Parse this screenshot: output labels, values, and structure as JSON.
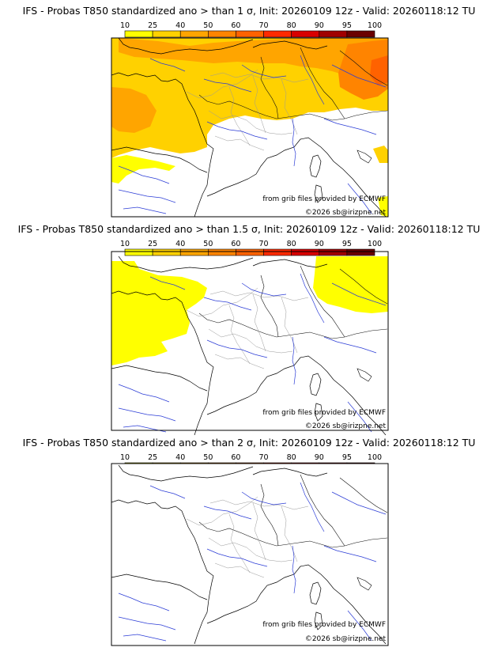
{
  "legend": {
    "ticks": [
      "10",
      "25",
      "40",
      "50",
      "60",
      "70",
      "80",
      "90",
      "95",
      "100"
    ],
    "colors": [
      "#ffff00",
      "#ffd100",
      "#ffa500",
      "#ff8400",
      "#ff6200",
      "#ff2a00",
      "#d80000",
      "#a00000",
      "#6a0000"
    ]
  },
  "panels": [
    {
      "title": "IFS - Probas T850  standardized ano > than 1 σ, Init: 20260109 12z - Valid: 20260118:12 TU",
      "credit": "from grib files provided by ECMWF",
      "copyright": "©2026 sb@irizpne.net"
    },
    {
      "title": "IFS - Probas T850  standardized ano > than 1.5 σ, Init: 20260109 12z - Valid: 20260118:12 TU",
      "credit": "from grib files provided by ECMWF",
      "copyright": "©2026 sb@irizpne.net"
    },
    {
      "title": "IFS - Probas T850  standardized ano > than 2 σ, Init: 20260109 12z - Valid: 20260118:12 TU",
      "credit": "from grib files provided by ECMWF",
      "copyright": "©2026 sb@irizpne.net"
    }
  ]
}
